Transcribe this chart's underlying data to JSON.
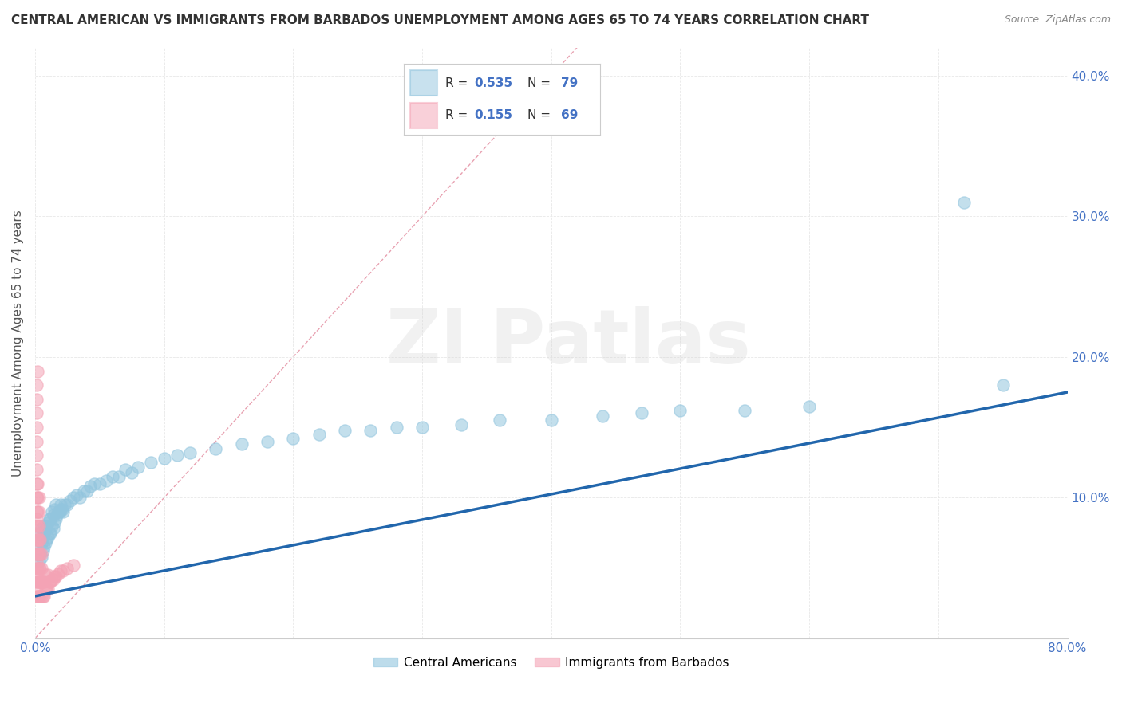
{
  "title": "CENTRAL AMERICAN VS IMMIGRANTS FROM BARBADOS UNEMPLOYMENT AMONG AGES 65 TO 74 YEARS CORRELATION CHART",
  "source": "Source: ZipAtlas.com",
  "ylabel": "Unemployment Among Ages 65 to 74 years",
  "xlim": [
    0,
    0.8
  ],
  "ylim": [
    0,
    0.42
  ],
  "xticks": [
    0.0,
    0.1,
    0.2,
    0.3,
    0.4,
    0.5,
    0.6,
    0.7,
    0.8
  ],
  "yticks": [
    0.0,
    0.1,
    0.2,
    0.3,
    0.4
  ],
  "legend_labels": [
    "Central Americans",
    "Immigrants from Barbados"
  ],
  "blue_color": "#92c5de",
  "pink_color": "#f4a3b5",
  "trend_line_color": "#2166ac",
  "ref_line_color": "#f4a3b5",
  "background_color": "#ffffff",
  "grid_color": "#e8e8e8",
  "trend_line_x0": 0.0,
  "trend_line_y0": 0.03,
  "trend_line_x1": 0.8,
  "trend_line_y1": 0.175,
  "blue_scatter_x": [
    0.001,
    0.002,
    0.003,
    0.003,
    0.004,
    0.004,
    0.005,
    0.005,
    0.005,
    0.006,
    0.006,
    0.007,
    0.007,
    0.007,
    0.008,
    0.008,
    0.009,
    0.009,
    0.01,
    0.01,
    0.011,
    0.011,
    0.012,
    0.012,
    0.013,
    0.013,
    0.014,
    0.014,
    0.015,
    0.015,
    0.016,
    0.016,
    0.017,
    0.018,
    0.019,
    0.02,
    0.02,
    0.021,
    0.022,
    0.023,
    0.025,
    0.027,
    0.03,
    0.032,
    0.035,
    0.038,
    0.04,
    0.043,
    0.046,
    0.05,
    0.055,
    0.06,
    0.065,
    0.07,
    0.075,
    0.08,
    0.09,
    0.1,
    0.11,
    0.12,
    0.14,
    0.16,
    0.18,
    0.2,
    0.22,
    0.24,
    0.26,
    0.28,
    0.3,
    0.33,
    0.36,
    0.4,
    0.44,
    0.47,
    0.5,
    0.55,
    0.6,
    0.72,
    0.75
  ],
  "blue_scatter_y": [
    0.065,
    0.06,
    0.055,
    0.07,
    0.06,
    0.075,
    0.058,
    0.068,
    0.078,
    0.062,
    0.072,
    0.065,
    0.075,
    0.08,
    0.068,
    0.078,
    0.07,
    0.08,
    0.072,
    0.082,
    0.075,
    0.085,
    0.075,
    0.085,
    0.08,
    0.09,
    0.078,
    0.088,
    0.082,
    0.092,
    0.085,
    0.095,
    0.088,
    0.09,
    0.09,
    0.092,
    0.095,
    0.092,
    0.09,
    0.095,
    0.095,
    0.098,
    0.1,
    0.102,
    0.1,
    0.105,
    0.105,
    0.108,
    0.11,
    0.11,
    0.112,
    0.115,
    0.115,
    0.12,
    0.118,
    0.122,
    0.125,
    0.128,
    0.13,
    0.132,
    0.135,
    0.138,
    0.14,
    0.142,
    0.145,
    0.148,
    0.148,
    0.15,
    0.15,
    0.152,
    0.155,
    0.155,
    0.158,
    0.16,
    0.162,
    0.162,
    0.165,
    0.31,
    0.18
  ],
  "pink_scatter_x": [
    0.001,
    0.001,
    0.001,
    0.001,
    0.001,
    0.001,
    0.001,
    0.001,
    0.001,
    0.001,
    0.001,
    0.001,
    0.001,
    0.001,
    0.001,
    0.001,
    0.001,
    0.001,
    0.001,
    0.001,
    0.002,
    0.002,
    0.002,
    0.002,
    0.002,
    0.002,
    0.002,
    0.002,
    0.002,
    0.003,
    0.003,
    0.003,
    0.003,
    0.003,
    0.003,
    0.003,
    0.003,
    0.004,
    0.004,
    0.004,
    0.004,
    0.004,
    0.005,
    0.005,
    0.005,
    0.005,
    0.006,
    0.006,
    0.007,
    0.007,
    0.008,
    0.008,
    0.009,
    0.01,
    0.01,
    0.011,
    0.012,
    0.013,
    0.014,
    0.015,
    0.016,
    0.018,
    0.02,
    0.022,
    0.025,
    0.03,
    0.001,
    0.001,
    0.002
  ],
  "pink_scatter_y": [
    0.03,
    0.04,
    0.05,
    0.06,
    0.07,
    0.08,
    0.09,
    0.1,
    0.11,
    0.12,
    0.13,
    0.14,
    0.15,
    0.16,
    0.035,
    0.045,
    0.055,
    0.065,
    0.075,
    0.085,
    0.03,
    0.04,
    0.05,
    0.06,
    0.07,
    0.08,
    0.09,
    0.1,
    0.11,
    0.03,
    0.04,
    0.05,
    0.06,
    0.07,
    0.08,
    0.09,
    0.1,
    0.03,
    0.04,
    0.05,
    0.06,
    0.07,
    0.03,
    0.04,
    0.05,
    0.06,
    0.03,
    0.04,
    0.03,
    0.04,
    0.035,
    0.045,
    0.035,
    0.035,
    0.045,
    0.04,
    0.04,
    0.042,
    0.042,
    0.044,
    0.044,
    0.046,
    0.048,
    0.048,
    0.05,
    0.052,
    0.18,
    0.17,
    0.19
  ],
  "watermark_line1": "ZI",
  "watermark_line2": "Patlas",
  "title_fontsize": 11,
  "axis_label_fontsize": 11,
  "tick_fontsize": 11
}
